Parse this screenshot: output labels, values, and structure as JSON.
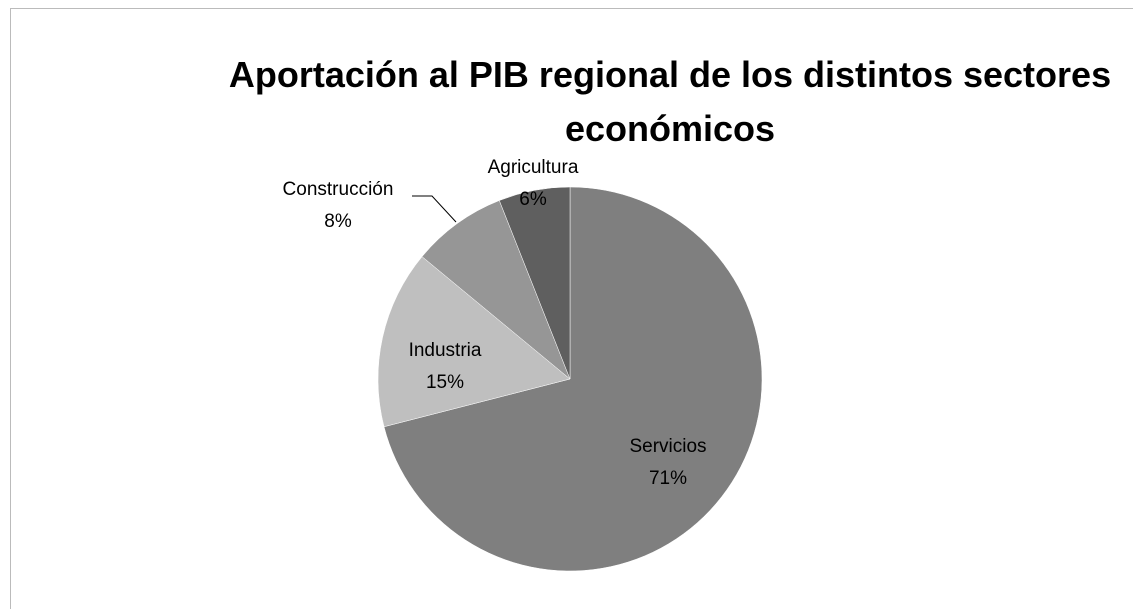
{
  "chart_data": {
    "type": "pie",
    "title": "Aportación al PIB regional de los distintos sectores económicos",
    "categories": [
      "Servicios",
      "Industria",
      "Construcción",
      "Agricultura"
    ],
    "values": [
      71,
      15,
      8,
      6
    ],
    "value_labels": [
      "71%",
      "15%",
      "8%",
      "6%"
    ],
    "colors": [
      "#7f7f7f",
      "#bfbfbf",
      "#969696",
      "#5f5f5f"
    ]
  }
}
